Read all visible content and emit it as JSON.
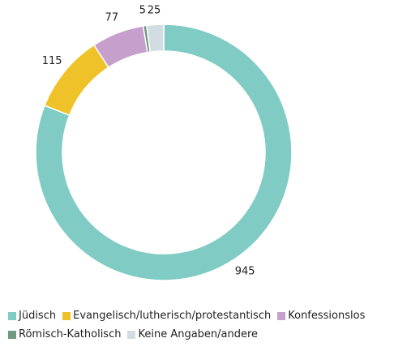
{
  "chart_data": {
    "type": "donut",
    "categories": [
      "Jüdisch",
      "Evangelisch/lutherisch/protestantisch",
      "Konfessionslos",
      "Römisch-Katholisch",
      "Keine Angaben/andere"
    ],
    "values": [
      945,
      115,
      77,
      5,
      25
    ],
    "colors": [
      "#80ccc5",
      "#f0c22a",
      "#c69fcc",
      "#6f9a7f",
      "#d2dde3"
    ],
    "legend": "bottom"
  }
}
